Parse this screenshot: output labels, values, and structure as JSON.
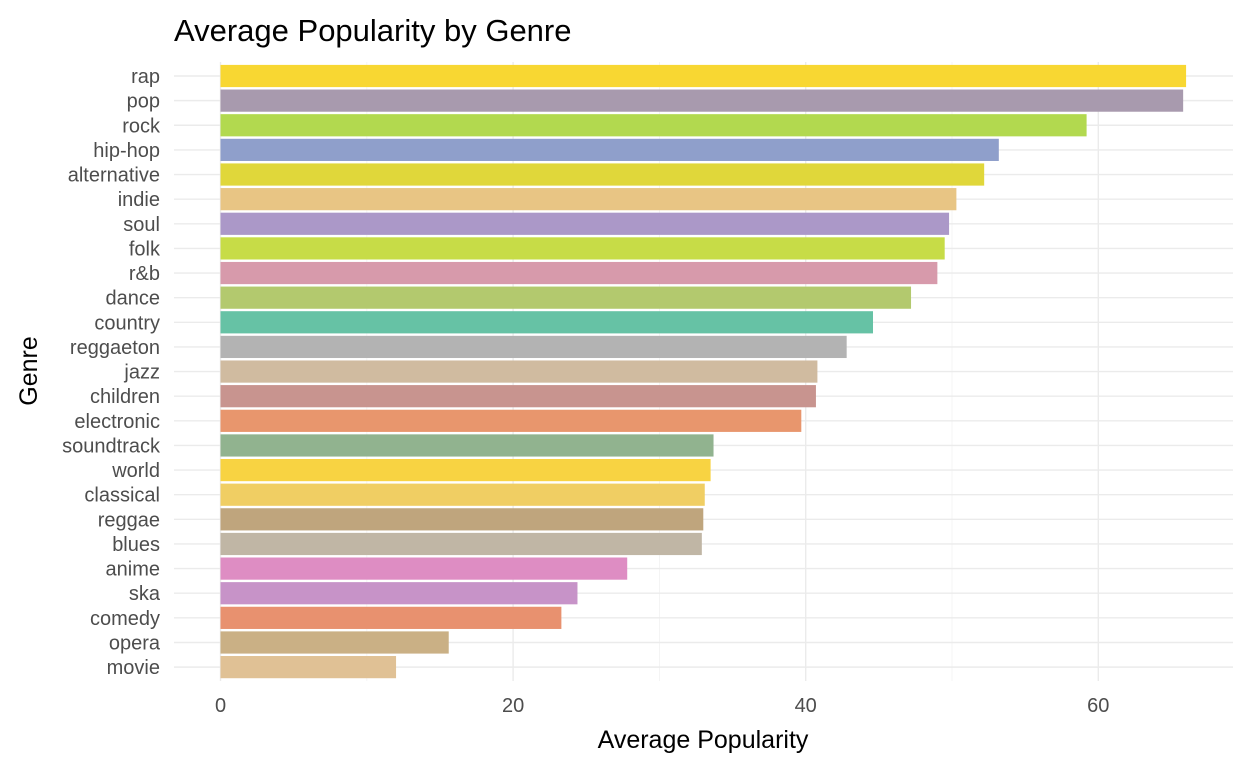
{
  "chart_data": {
    "type": "bar",
    "orientation": "horizontal",
    "title": "Average Popularity by Genre",
    "xlabel": "Average Popularity",
    "ylabel": "Genre",
    "xlim": [
      0,
      69
    ],
    "xticks": [
      0,
      20,
      40,
      60
    ],
    "grid": true,
    "legend": "none",
    "categories": [
      "rap",
      "pop",
      "rock",
      "hip-hop",
      "alternative",
      "indie",
      "soul",
      "folk",
      "r&b",
      "dance",
      "country",
      "reggaeton",
      "jazz",
      "children",
      "electronic",
      "soundtrack",
      "world",
      "classical",
      "reggae",
      "blues",
      "anime",
      "ska",
      "comedy",
      "opera",
      "movie"
    ],
    "values": [
      66.0,
      65.8,
      59.2,
      53.2,
      52.2,
      50.3,
      49.8,
      49.5,
      49.0,
      47.2,
      44.6,
      42.8,
      40.8,
      40.7,
      39.7,
      33.7,
      33.5,
      33.1,
      33.0,
      32.9,
      27.8,
      24.4,
      23.3,
      15.6,
      12.0
    ],
    "colors": [
      "#f8d732",
      "#a89aae",
      "#b2d94f",
      "#8f9fcb",
      "#e0d73a",
      "#e8c584",
      "#ab98c8",
      "#c7dc47",
      "#d79aab",
      "#b3c96e",
      "#66c2a5",
      "#b3b3b3",
      "#d0bba0",
      "#c8948f",
      "#e8966d",
      "#91b38f",
      "#f8d342",
      "#f0ce63",
      "#bfa57d",
      "#c0b6a5",
      "#de8dc3",
      "#c793c8",
      "#e8916f",
      "#cab085",
      "#e0c195"
    ]
  }
}
